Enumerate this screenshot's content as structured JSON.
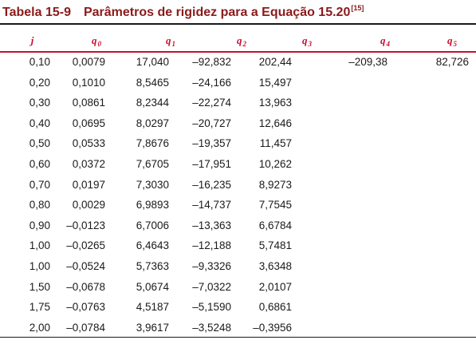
{
  "table": {
    "label": "Tabela 15-9",
    "title": "Parâmetros de rigidez para a Equação 15.20",
    "ref": "[15]",
    "columns": [
      {
        "sym": "j",
        "sub": ""
      },
      {
        "sym": "q",
        "sub": "0"
      },
      {
        "sym": "q",
        "sub": "1"
      },
      {
        "sym": "q",
        "sub": "2"
      },
      {
        "sym": "q",
        "sub": "3"
      },
      {
        "sym": "q",
        "sub": "4"
      },
      {
        "sym": "q",
        "sub": "5"
      }
    ],
    "rows": [
      [
        "0,10",
        "0,0079",
        "17,040",
        "–92,832",
        "202,44",
        "–209,38",
        "82,726"
      ],
      [
        "0,20",
        "0,1010",
        "8,5465",
        "–24,166",
        "15,497",
        "",
        ""
      ],
      [
        "0,30",
        "0,0861",
        "8,2344",
        "–22,274",
        "13,963",
        "",
        ""
      ],
      [
        "0,40",
        "0,0695",
        "8,0297",
        "–20,727",
        "12,646",
        "",
        ""
      ],
      [
        "0,50",
        "0,0533",
        "7,8676",
        "–19,357",
        "11,457",
        "",
        ""
      ],
      [
        "0,60",
        "0,0372",
        "7,6705",
        "–17,951",
        "10,262",
        "",
        ""
      ],
      [
        "0,70",
        "0,0197",
        "7,3030",
        "–16,235",
        "8,9273",
        "",
        ""
      ],
      [
        "0,80",
        "0,0029",
        "6,9893",
        "–14,737",
        "7,7545",
        "",
        ""
      ],
      [
        "0,90",
        "–0,0123",
        "6,7006",
        "–13,363",
        "6,6784",
        "",
        ""
      ],
      [
        "1,00",
        "–0,0265",
        "6,4643",
        "–12,188",
        "5,7481",
        "",
        ""
      ],
      [
        "1,00",
        "–0,0524",
        "5,7363",
        "–9,3326",
        "3,6348",
        "",
        ""
      ],
      [
        "1,50",
        "–0,0678",
        "5,0674",
        "–7,0322",
        "2,0107",
        "",
        ""
      ],
      [
        "1,75",
        "–0,0763",
        "4,5187",
        "–5,1590",
        "0,6861",
        "",
        ""
      ],
      [
        "2,00",
        "–0,0784",
        "3,9617",
        "–3,5248",
        "–0,3956",
        "",
        ""
      ]
    ]
  },
  "colors": {
    "title": "#8b1a1a",
    "header": "#c8102e",
    "rule": "#1a1a1a"
  }
}
